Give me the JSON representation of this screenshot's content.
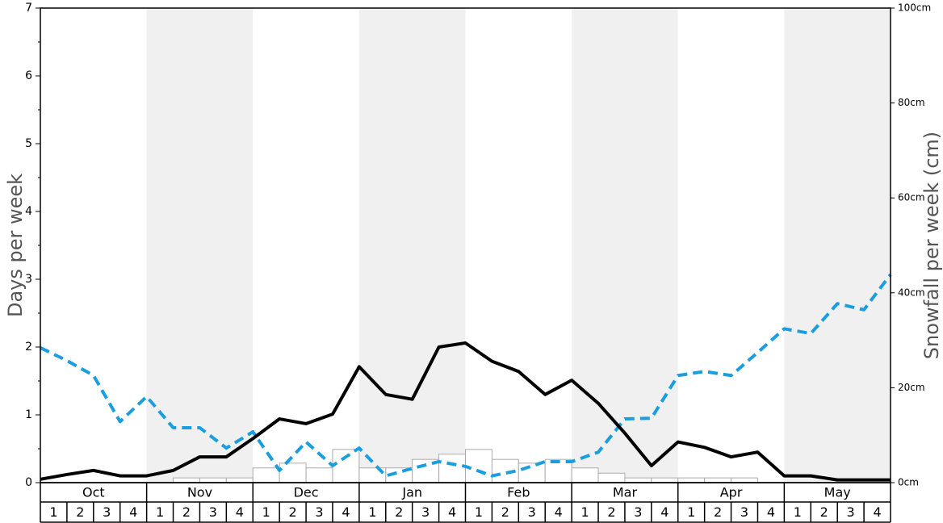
{
  "chart_data": {
    "type": "line",
    "months": [
      "Oct",
      "Nov",
      "Dec",
      "Jan",
      "Feb",
      "Mar",
      "Apr",
      "May"
    ],
    "weeks": [
      1,
      2,
      3,
      4
    ],
    "ylabel": "Days per week",
    "y2label": "Snowfall per week (cm)",
    "ylim": [
      0,
      7
    ],
    "yticks": [
      0,
      1,
      2,
      3,
      4,
      5,
      6,
      7
    ],
    "yminorticks": [
      0.5,
      1.5,
      2.5,
      3.5,
      4.5,
      5.5,
      6.5
    ],
    "y2lim": [
      0,
      100
    ],
    "y2ticks": [
      {
        "value": 0,
        "label": "0cm"
      },
      {
        "value": 20,
        "label": "20cm"
      },
      {
        "value": 40,
        "label": "40cm"
      },
      {
        "value": 60,
        "label": "60cm"
      },
      {
        "value": 80,
        "label": "80cm"
      },
      {
        "value": 100,
        "label": "100cm"
      }
    ],
    "alternate_shading": "#f0f0f0",
    "bars": {
      "type": "bar",
      "axis": "y2",
      "color": "#ffffff",
      "edge_color": "#aaaaaa",
      "values": [
        0,
        0,
        0,
        0,
        0,
        1.0,
        1.0,
        1.0,
        3.1,
        4.1,
        3.1,
        7.0,
        3.1,
        3.1,
        4.9,
        6.0,
        7.0,
        4.9,
        4.1,
        4.9,
        3.1,
        2.0,
        1.0,
        1.0,
        1.0,
        1.0,
        1.0,
        0,
        0,
        0,
        0,
        0
      ]
    },
    "series": [
      {
        "color": "#1a9ee0",
        "dashed": true,
        "values": [
          1.99,
          1.8,
          1.58,
          0.9,
          1.27,
          0.81,
          0.81,
          0.51,
          0.75,
          0.18,
          0.6,
          0.25,
          0.51,
          0.1,
          0.21,
          0.31,
          0.24,
          0.1,
          0.18,
          0.31,
          0.31,
          0.45,
          0.94,
          0.95,
          1.58,
          1.64,
          1.58,
          1.92,
          2.27,
          2.2,
          2.64,
          2.55,
          3.07
        ]
      },
      {
        "color": "#000000",
        "dashed": false,
        "values": [
          0.05,
          0.12,
          0.18,
          0.1,
          0.1,
          0.18,
          0.38,
          0.38,
          0.65,
          0.94,
          0.87,
          1.01,
          1.71,
          1.3,
          1.23,
          2.0,
          2.06,
          1.79,
          1.64,
          1.3,
          1.51,
          1.17,
          0.73,
          0.25,
          0.6,
          0.52,
          0.38,
          0.45,
          0.1,
          0.1,
          0.04,
          0.04,
          0.04
        ]
      }
    ]
  }
}
